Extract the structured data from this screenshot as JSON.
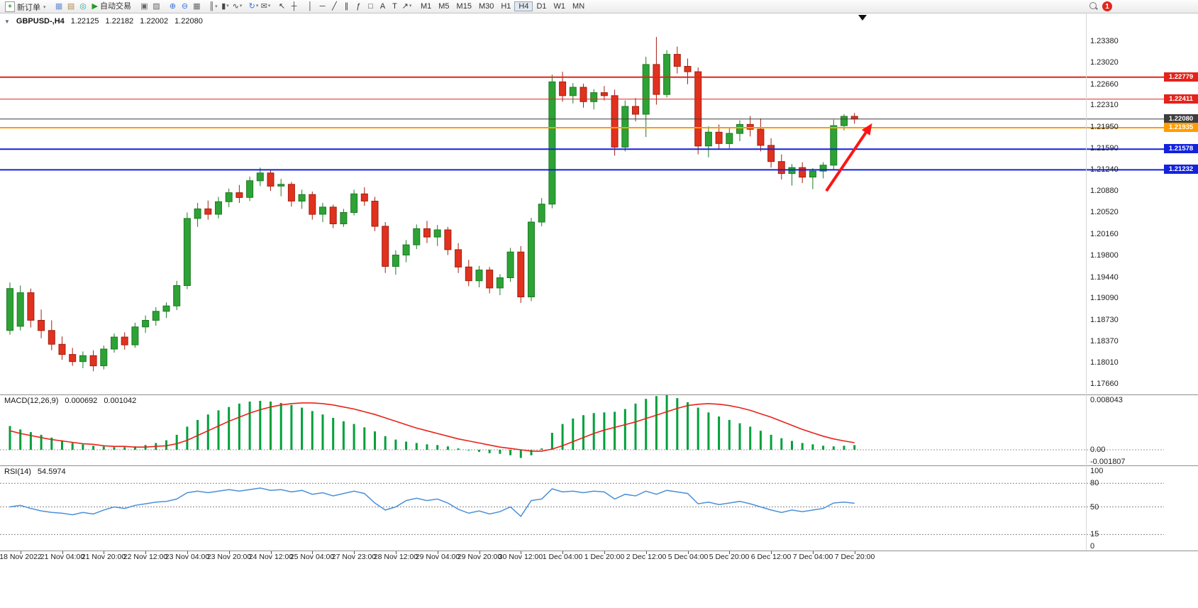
{
  "toolbar": {
    "new_order_label": "新订单",
    "autotrade_label": "自动交易",
    "badge": "1",
    "timeframes": [
      "M1",
      "M5",
      "M15",
      "M30",
      "H1",
      "H4",
      "D1",
      "W1",
      "MN"
    ],
    "active_timeframe": "H4",
    "items": [
      {
        "type": "button",
        "name": "new-order-button",
        "icon": "new-order-icon",
        "glyph": "+",
        "label_key": "new_order_label",
        "dd": true
      },
      {
        "type": "sep"
      },
      {
        "type": "icon",
        "name": "charts-grid-icon",
        "glyph": "▦",
        "color": "#6b8fd0"
      },
      {
        "type": "icon",
        "name": "profile-icon",
        "glyph": "▤",
        "color": "#b0894a"
      },
      {
        "type": "icon",
        "name": "sound-icon",
        "glyph": "◎",
        "color": "#2fa89a"
      },
      {
        "type": "button",
        "name": "autotrade-button",
        "icon": "autotrade-play-icon",
        "glyph": "▶",
        "glyph_color": "#1f9c1f",
        "label_key": "autotrade_label",
        "dd": false
      },
      {
        "type": "sep"
      },
      {
        "type": "icon",
        "name": "tile-windows-icon",
        "glyph": "▣",
        "color": "#666666"
      },
      {
        "type": "icon",
        "name": "cascade-windows-icon",
        "glyph": "▨",
        "color": "#666666"
      },
      {
        "type": "sep"
      },
      {
        "type": "icon",
        "name": "zoom-in-icon",
        "glyph": "⊕",
        "color": "#3a6fd8"
      },
      {
        "type": "icon",
        "name": "zoom-out-icon",
        "glyph": "⊖",
        "color": "#3a6fd8"
      },
      {
        "type": "icon",
        "name": "tile-grid-icon",
        "glyph": "▦",
        "color": "#666666"
      },
      {
        "type": "sep"
      },
      {
        "type": "icon",
        "name": "bar-chart-icon",
        "glyph": "║",
        "color": "#444444",
        "dd": true
      },
      {
        "type": "icon",
        "name": "candlestick-chart-icon",
        "glyph": "▮",
        "color": "#444444",
        "dd": true
      },
      {
        "type": "icon",
        "name": "line-chart-icon",
        "glyph": "∿",
        "color": "#444444",
        "dd": true
      },
      {
        "type": "sep"
      },
      {
        "type": "icon",
        "name": "indicators-icon",
        "glyph": "↻",
        "color": "#3a6fd8",
        "dd": true
      },
      {
        "type": "icon",
        "name": "mail-icon",
        "glyph": "✉",
        "color": "#555555",
        "dd": true
      },
      {
        "type": "sep"
      },
      {
        "type": "icon",
        "name": "cursor-icon",
        "glyph": "↖",
        "color": "#333333"
      },
      {
        "type": "icon",
        "name": "crosshair-icon",
        "glyph": "┼",
        "color": "#333333"
      },
      {
        "type": "sep"
      },
      {
        "type": "icon",
        "name": "vertical-line-icon",
        "glyph": "│",
        "color": "#333333"
      },
      {
        "type": "icon",
        "name": "horizontal-line-icon",
        "glyph": "─",
        "color": "#333333"
      },
      {
        "type": "icon",
        "name": "trendline-icon",
        "glyph": "╱",
        "color": "#333333"
      },
      {
        "type": "icon",
        "name": "channel-icon",
        "glyph": "∥",
        "color": "#333333"
      },
      {
        "type": "icon",
        "name": "fibonacci-icon",
        "glyph": "ƒ",
        "color": "#333333"
      },
      {
        "type": "icon",
        "name": "shapes-icon",
        "glyph": "□",
        "color": "#333333"
      },
      {
        "type": "icon",
        "name": "text-icon",
        "glyph": "A",
        "color": "#333333"
      },
      {
        "type": "icon",
        "name": "text-label-icon",
        "glyph": "T",
        "color": "#333333"
      },
      {
        "type": "icon",
        "name": "arrows-icon",
        "glyph": "↗",
        "color": "#333333",
        "dd": true
      },
      {
        "type": "sep"
      },
      {
        "type": "timeframes"
      }
    ]
  },
  "chart_header": {
    "symbol": "GBPUSD-,H4",
    "open": "1.22125",
    "high": "1.22182",
    "low": "1.22002",
    "close": "1.22080"
  },
  "colors": {
    "candle_up_fill": "#2da335",
    "candle_up_stroke": "#1d7a24",
    "candle_down_fill": "#e0321e",
    "candle_down_stroke": "#a31f12",
    "macd_hist": "#00a13a",
    "macd_signal": "#e8231a",
    "rsi_line": "#4a90d9",
    "arrow": "#ff1414"
  },
  "chart_data": [
    {
      "type": "candlestick",
      "title": "GBPUSD-,H4",
      "timeframe": "H4",
      "ylim": [
        1.1766,
        1.2345
      ],
      "y_ticks": [
        "1.23380",
        "1.23020",
        "1.22660",
        "1.22310",
        "1.21950",
        "1.21590",
        "1.21240",
        "1.20880",
        "1.20520",
        "1.20160",
        "1.19800",
        "1.19440",
        "1.19090",
        "1.18730",
        "1.18370",
        "1.18010",
        "1.17660"
      ],
      "x_labels": [
        "18 Nov 2022",
        "21 Nov 04:00",
        "21 Nov 20:00",
        "22 Nov 12:00",
        "23 Nov 04:00",
        "23 Nov 20:00",
        "24 Nov 12:00",
        "25 Nov 04:00",
        "27 Nov 23:00",
        "28 Nov 12:00",
        "29 Nov 04:00",
        "29 Nov 20:00",
        "30 Nov 12:00",
        "1 Dec 04:00",
        "1 Dec 20:00",
        "2 Dec 12:00",
        "5 Dec 04:00",
        "5 Dec 20:00",
        "6 Dec 12:00",
        "7 Dec 04:00",
        "7 Dec 20:00"
      ],
      "levels": [
        {
          "price": 1.22779,
          "label": "1.22779",
          "color": "#e2241b",
          "width": 2
        },
        {
          "price": 1.22411,
          "label": "1.22411",
          "color": "#e2241b",
          "width": 1
        },
        {
          "price": 1.2208,
          "label": "1.22080",
          "color": "#3d3d3d",
          "width": 1
        },
        {
          "price": 1.21935,
          "label": "1.21935",
          "color": "#ff9d00",
          "width": 2
        },
        {
          "price": 1.21578,
          "label": "1.21578",
          "color": "#1222dd",
          "width": 2
        },
        {
          "price": 1.21232,
          "label": "1.21232",
          "color": "#1222dd",
          "width": 2
        }
      ],
      "annotation": {
        "type": "arrow",
        "color": "#ff1414",
        "from_bar": 78.3,
        "from_price": 1.2088,
        "to_bar": 82.5,
        "to_price": 1.2196,
        "stroke_width": 4
      },
      "candles": [
        [
          1.1855,
          1.1935,
          1.1848,
          1.1925
        ],
        [
          1.1862,
          1.193,
          1.1855,
          1.1918
        ],
        [
          1.1918,
          1.1925,
          1.186,
          1.1872
        ],
        [
          1.1872,
          1.189,
          1.1842,
          1.1855
        ],
        [
          1.1855,
          1.1872,
          1.1822,
          1.1832
        ],
        [
          1.1832,
          1.1845,
          1.1806,
          1.1815
        ],
        [
          1.1815,
          1.1826,
          1.1796,
          1.1803
        ],
        [
          1.1803,
          1.182,
          1.1792,
          1.1813
        ],
        [
          1.1813,
          1.1822,
          1.1787,
          1.1796
        ],
        [
          1.1796,
          1.183,
          1.179,
          1.1824
        ],
        [
          1.1824,
          1.185,
          1.1818,
          1.1844
        ],
        [
          1.1844,
          1.1852,
          1.1823,
          1.1831
        ],
        [
          1.1831,
          1.1868,
          1.1826,
          1.1861
        ],
        [
          1.1861,
          1.188,
          1.1851,
          1.1872
        ],
        [
          1.1872,
          1.1894,
          1.1863,
          1.1887
        ],
        [
          1.1887,
          1.1902,
          1.1876,
          1.1896
        ],
        [
          1.1896,
          1.1938,
          1.1889,
          1.193
        ],
        [
          1.193,
          1.2052,
          1.1924,
          1.2042
        ],
        [
          1.2042,
          1.2068,
          1.2028,
          1.2058
        ],
        [
          1.2058,
          1.2072,
          1.204,
          1.2049
        ],
        [
          1.2049,
          1.2078,
          1.2042,
          1.207
        ],
        [
          1.207,
          1.2092,
          1.2061,
          1.2085
        ],
        [
          1.2085,
          1.2098,
          1.2068,
          1.2077
        ],
        [
          1.2077,
          1.2112,
          1.2071,
          1.2105
        ],
        [
          1.2105,
          1.2127,
          1.2096,
          1.2118
        ],
        [
          1.2118,
          1.2123,
          1.2088,
          1.2096
        ],
        [
          1.2096,
          1.2108,
          1.2079,
          1.2099
        ],
        [
          1.2099,
          1.2103,
          1.2062,
          1.2071
        ],
        [
          1.2071,
          1.209,
          1.2058,
          1.2082
        ],
        [
          1.2082,
          1.2087,
          1.204,
          1.2049
        ],
        [
          1.2049,
          1.2068,
          1.2036,
          1.2061
        ],
        [
          1.2061,
          1.2065,
          1.2026,
          1.2033
        ],
        [
          1.2033,
          1.2058,
          1.2028,
          1.2052
        ],
        [
          1.2052,
          1.209,
          1.2047,
          1.2083
        ],
        [
          1.2083,
          1.2094,
          1.2063,
          1.2071
        ],
        [
          1.2071,
          1.2078,
          1.2021,
          1.2029
        ],
        [
          1.2029,
          1.2036,
          1.1951,
          1.1962
        ],
        [
          1.1962,
          1.1989,
          1.1948,
          1.1981
        ],
        [
          1.1981,
          1.2006,
          1.1969,
          1.1998
        ],
        [
          1.1998,
          1.2032,
          1.1991,
          1.2025
        ],
        [
          1.2025,
          1.2038,
          1.2001,
          1.2011
        ],
        [
          1.2011,
          1.2031,
          1.1996,
          1.2023
        ],
        [
          1.2023,
          1.2028,
          1.1981,
          1.199
        ],
        [
          1.199,
          1.2001,
          1.1951,
          1.1961
        ],
        [
          1.1961,
          1.1973,
          1.1929,
          1.1938
        ],
        [
          1.1938,
          1.1963,
          1.1927,
          1.1956
        ],
        [
          1.1956,
          1.1961,
          1.1917,
          1.1926
        ],
        [
          1.1926,
          1.1949,
          1.1914,
          1.1943
        ],
        [
          1.1943,
          1.1993,
          1.1936,
          1.1986
        ],
        [
          1.1986,
          1.1996,
          1.1901,
          1.1911
        ],
        [
          1.1911,
          1.2043,
          1.1904,
          1.2036
        ],
        [
          1.2036,
          1.2076,
          1.2029,
          1.2066
        ],
        [
          1.2066,
          1.2282,
          1.2059,
          1.227
        ],
        [
          1.227,
          1.2287,
          1.2237,
          1.2247
        ],
        [
          1.2247,
          1.2268,
          1.2234,
          1.2261
        ],
        [
          1.2261,
          1.2267,
          1.2227,
          1.2237
        ],
        [
          1.2237,
          1.2258,
          1.2224,
          1.2252
        ],
        [
          1.2252,
          1.2263,
          1.2239,
          1.2247
        ],
        [
          1.2247,
          1.2257,
          1.2147,
          1.2161
        ],
        [
          1.2161,
          1.2239,
          1.2154,
          1.2229
        ],
        [
          1.2229,
          1.2243,
          1.2204,
          1.2216
        ],
        [
          1.2216,
          1.2312,
          1.2178,
          1.2299
        ],
        [
          1.2299,
          1.2345,
          1.2232,
          1.2249
        ],
        [
          1.2249,
          1.2323,
          1.2244,
          1.2316
        ],
        [
          1.2316,
          1.2329,
          1.2284,
          1.2296
        ],
        [
          1.2296,
          1.2309,
          1.2266,
          1.2287
        ],
        [
          1.2287,
          1.2294,
          1.2149,
          1.2163
        ],
        [
          1.2163,
          1.2196,
          1.2144,
          1.2186
        ],
        [
          1.2186,
          1.2199,
          1.2157,
          1.2167
        ],
        [
          1.2167,
          1.2193,
          1.2159,
          1.2184
        ],
        [
          1.2184,
          1.2206,
          1.2171,
          1.2199
        ],
        [
          1.2199,
          1.2213,
          1.2179,
          1.2191
        ],
        [
          1.2191,
          1.2209,
          1.2154,
          1.2164
        ],
        [
          1.2164,
          1.2176,
          1.2127,
          1.2137
        ],
        [
          1.2137,
          1.2149,
          1.2107,
          1.2117
        ],
        [
          1.2117,
          1.2133,
          1.2097,
          1.2127
        ],
        [
          1.2127,
          1.2136,
          1.2101,
          1.2111
        ],
        [
          1.2111,
          1.2126,
          1.2091,
          1.2121
        ],
        [
          1.2121,
          1.2136,
          1.2109,
          1.2131
        ],
        [
          1.2131,
          1.2207,
          1.2124,
          1.2197
        ],
        [
          1.2197,
          1.2216,
          1.2189,
          1.22125
        ],
        [
          1.22125,
          1.22182,
          1.22002,
          1.2208
        ]
      ]
    },
    {
      "type": "bar",
      "name": "MACD(12,26,9)",
      "values_display": [
        "0.000692",
        "0.001042"
      ],
      "y_ticks": [
        "0.008043",
        "0.00",
        "-0.001807"
      ],
      "histogram": [
        0.0035,
        0.003,
        0.0026,
        0.0022,
        0.0018,
        0.0014,
        0.001,
        0.0008,
        0.0006,
        0.0005,
        0.0004,
        0.0004,
        0.0005,
        0.0007,
        0.001,
        0.0014,
        0.0022,
        0.0034,
        0.0044,
        0.0052,
        0.0058,
        0.0063,
        0.0068,
        0.0071,
        0.0072,
        0.0071,
        0.0069,
        0.0066,
        0.0062,
        0.0057,
        0.0052,
        0.0047,
        0.0042,
        0.0038,
        0.0033,
        0.0027,
        0.002,
        0.0015,
        0.0012,
        0.001,
        0.0008,
        0.0007,
        0.0005,
        0.0002,
        -0.0001,
        -0.0003,
        -0.0005,
        -0.0006,
        -0.0008,
        -0.0012,
        -0.0008,
        0.0002,
        0.0025,
        0.0038,
        0.0046,
        0.0051,
        0.0054,
        0.0055,
        0.0056,
        0.006,
        0.0068,
        0.0075,
        0.0079,
        0.008043,
        0.0076,
        0.007,
        0.0062,
        0.0055,
        0.0049,
        0.0044,
        0.0039,
        0.0034,
        0.0028,
        0.0022,
        0.0017,
        0.0013,
        0.001,
        0.0008,
        0.0006,
        0.0005,
        0.0006,
        0.000692
      ],
      "signal": [
        0.0028,
        0.0024,
        0.0021,
        0.0018,
        0.0015,
        0.0013,
        0.0011,
        0.0009,
        0.0008,
        0.0006,
        0.0005,
        0.0005,
        0.0004,
        0.0004,
        0.0005,
        0.0006,
        0.0009,
        0.0014,
        0.0021,
        0.0028,
        0.0035,
        0.0042,
        0.0048,
        0.0054,
        0.0059,
        0.0063,
        0.0066,
        0.0068,
        0.0069,
        0.0069,
        0.0068,
        0.0066,
        0.0063,
        0.006,
        0.0056,
        0.0052,
        0.0047,
        0.0042,
        0.0037,
        0.0032,
        0.0028,
        0.0024,
        0.002,
        0.0016,
        0.0013,
        0.001,
        0.0007,
        0.0004,
        0.0002,
        0.0,
        -0.0002,
        -0.0002,
        0.0001,
        0.0006,
        0.0012,
        0.0018,
        0.0024,
        0.0029,
        0.0033,
        0.0037,
        0.0041,
        0.0046,
        0.0051,
        0.0056,
        0.0061,
        0.0065,
        0.0067,
        0.0068,
        0.0067,
        0.0065,
        0.0062,
        0.0058,
        0.0053,
        0.0048,
        0.0042,
        0.0036,
        0.003,
        0.0025,
        0.002,
        0.0016,
        0.0013,
        0.001042
      ]
    },
    {
      "type": "line",
      "name": "RSI(14)",
      "value_display": "54.5974",
      "y_ticks": [
        "100",
        "80",
        "50",
        "15",
        "0"
      ],
      "levels": [
        80,
        50,
        15
      ],
      "values": [
        50,
        52,
        48,
        45,
        43,
        42,
        40,
        43,
        41,
        46,
        50,
        48,
        52,
        54,
        56,
        57,
        60,
        68,
        70,
        68,
        70,
        72,
        70,
        72,
        74,
        71,
        72,
        69,
        71,
        66,
        68,
        64,
        67,
        70,
        67,
        55,
        46,
        50,
        58,
        61,
        58,
        60,
        55,
        47,
        42,
        45,
        41,
        44,
        50,
        38,
        58,
        60,
        73,
        69,
        70,
        68,
        70,
        69,
        60,
        66,
        64,
        70,
        66,
        71,
        69,
        67,
        54,
        56,
        53,
        55,
        57,
        54,
        50,
        46,
        43,
        46,
        44,
        46,
        48,
        55,
        56,
        54.6
      ]
    }
  ]
}
